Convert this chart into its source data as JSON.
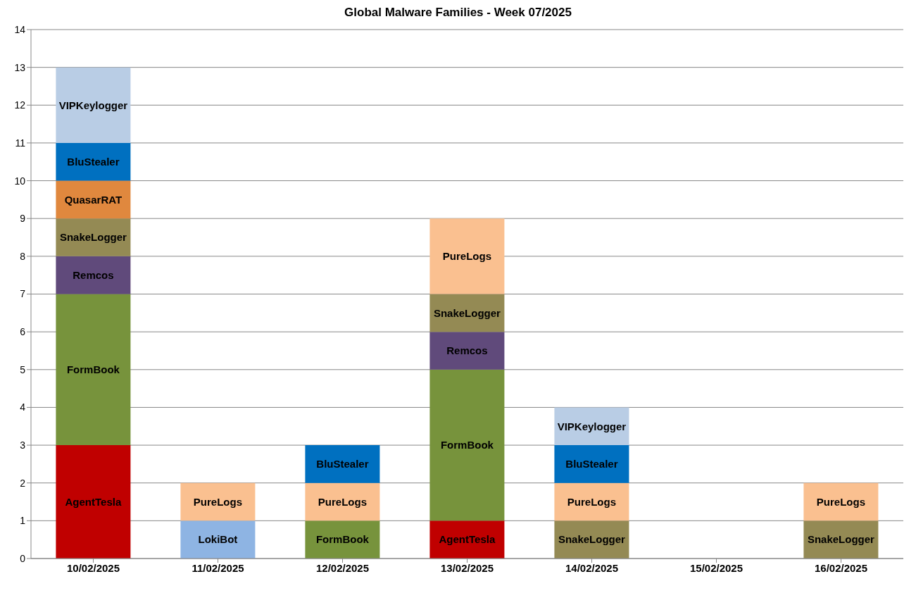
{
  "chart_data": {
    "type": "bar",
    "title": "Global Malware Families - Week 07/2025",
    "stacked": true,
    "grid": "y",
    "categories": [
      "10/02/2025",
      "11/02/2025",
      "12/02/2025",
      "13/02/2025",
      "14/02/2025",
      "15/02/2025",
      "16/02/2025"
    ],
    "ylim": [
      0,
      14
    ],
    "yticks": [
      0,
      1,
      2,
      3,
      4,
      5,
      6,
      7,
      8,
      9,
      10,
      11,
      12,
      13,
      14
    ],
    "series": [
      {
        "name": "AgentTesla",
        "color": "#c00000",
        "values": [
          3,
          null,
          null,
          1,
          null,
          null,
          null
        ]
      },
      {
        "name": "LokiBot",
        "color": "#8eb4e3",
        "values": [
          null,
          1,
          null,
          null,
          null,
          null,
          null
        ]
      },
      {
        "name": "FormBook",
        "color": "#77933c",
        "values": [
          4,
          null,
          1,
          4,
          null,
          null,
          null
        ]
      },
      {
        "name": "Remcos",
        "color": "#604a7b",
        "values": [
          1,
          null,
          null,
          1,
          null,
          null,
          null
        ]
      },
      {
        "name": "SnakeLogger",
        "color": "#948a54",
        "values": [
          1,
          null,
          null,
          1,
          1,
          null,
          1
        ]
      },
      {
        "name": "PureLogs",
        "color": "#fac090",
        "values": [
          null,
          1,
          1,
          2,
          1,
          null,
          1
        ]
      },
      {
        "name": "QuasarRAT",
        "color": "#e0883e",
        "values": [
          1,
          null,
          null,
          null,
          null,
          null,
          null
        ]
      },
      {
        "name": "BluStealer",
        "color": "#0070c0",
        "values": [
          1,
          null,
          1,
          null,
          1,
          null,
          null
        ]
      },
      {
        "name": "VIPKeylogger",
        "color": "#b9cde5",
        "values": [
          2,
          null,
          null,
          null,
          1,
          null,
          null
        ]
      }
    ]
  }
}
